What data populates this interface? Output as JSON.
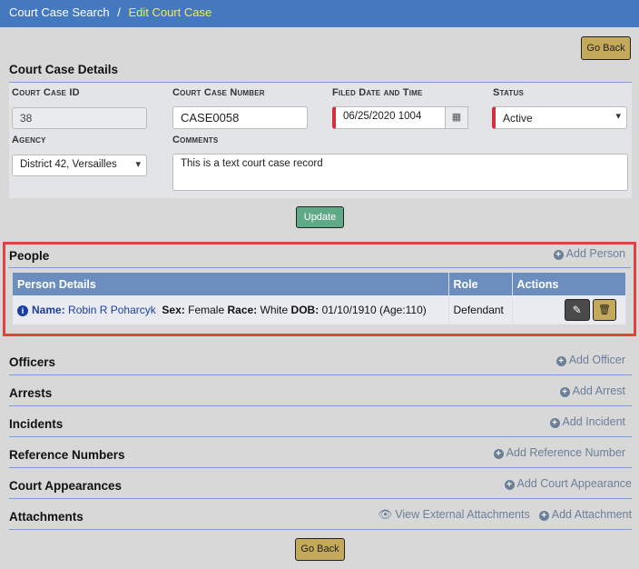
{
  "breadcrumb": {
    "parent": "Court Case Search",
    "separator": "/",
    "current": "Edit Court Case"
  },
  "go_back_label": "Go Back",
  "details": {
    "title": "Court Case Details",
    "id_label": "Court Case ID",
    "id_value": "38",
    "number_label": "Court Case Number",
    "number_value": "CASE0058",
    "filed_label": "Filed Date and Time",
    "filed_value": "06/25/2020 1004",
    "status_label": "Status",
    "status_value": "Active",
    "agency_label": "Agency",
    "agency_value": "District 42, Versailles",
    "comments_label": "Comments",
    "comments_value": "This is a text court case record",
    "update_label": "Update"
  },
  "people": {
    "title": "People",
    "add_label": "Add Person",
    "columns": [
      "Person Details",
      "Role",
      "Actions"
    ],
    "rows": [
      {
        "name_label": "Name:",
        "name": "Robin R Poharcyk",
        "sex_label": "Sex:",
        "sex": "Female",
        "race_label": "Race:",
        "race": "White",
        "dob_label": "DOB:",
        "dob": "01/10/1910 (Age:110)",
        "role": "Defendant"
      }
    ]
  },
  "sections": [
    {
      "title": "Officers",
      "add_label": "Add Officer"
    },
    {
      "title": "Arrests",
      "add_label": "Add Arrest"
    },
    {
      "title": "Incidents",
      "add_label": "Add Incident"
    },
    {
      "title": "Reference Numbers",
      "add_label": "Add Reference Number"
    },
    {
      "title": "Court Appearances",
      "add_label": "Add Court Appearance"
    },
    {
      "title": "Attachments",
      "add_label": "Add Attachment",
      "view_label": "View External Attachments"
    }
  ],
  "colors": {
    "header": "#4479bf",
    "accent_gold": "#c4a95a",
    "update_green": "#5fa987",
    "required": "#d6303f",
    "highlight": "#e4423f"
  }
}
